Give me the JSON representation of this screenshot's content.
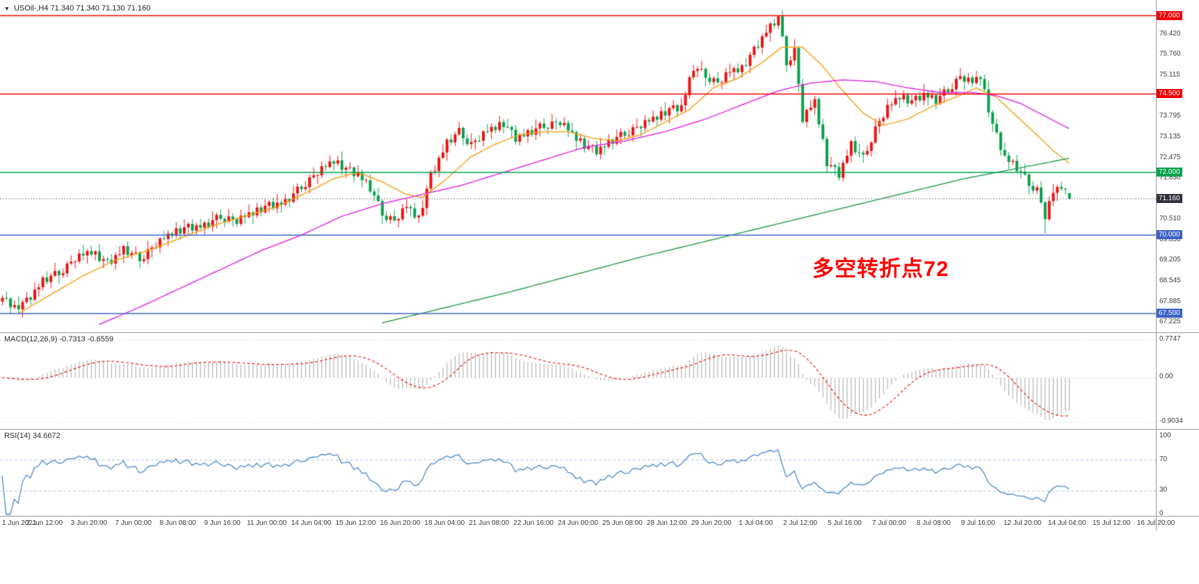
{
  "title": {
    "symbol_tf": "USOil-,H4",
    "ohlc": "71.340 71.340 71.130 71.160"
  },
  "annotation": {
    "text": "多空转折点72",
    "color": "#fe0000"
  },
  "current_price": {
    "price": 71.16,
    "label": "71.160",
    "color": "#30303c"
  },
  "hlines": [
    {
      "price": 77.0,
      "label": "77.000",
      "color": "#f00000"
    },
    {
      "price": 74.5,
      "label": "74.500",
      "color": "#f00000"
    },
    {
      "price": 72.0,
      "label": "72.000",
      "color": "#00a14b"
    },
    {
      "price": 70.0,
      "label": "70.000",
      "color": "#3a62c8"
    },
    {
      "price": 67.5,
      "label": "67.500",
      "color": "#3a62c8"
    }
  ],
  "price_axis": {
    "plain_labels": [
      "76.420",
      "75.760",
      "75.115",
      "73.795",
      "73.135",
      "72.475",
      "71.830",
      "70.510",
      "69.850",
      "69.205",
      "68.545",
      "67.885",
      "67.225"
    ]
  },
  "macd": {
    "title": "MACD(12,26,9)",
    "values": "-0.7313 -0.6559",
    "axis": [
      "0.7747",
      "0.00",
      "-0.9034"
    ],
    "axis_values": [
      0.7747,
      0,
      -0.9034
    ],
    "hist_color": "#a6a6a6",
    "signal_color": "#f00000"
  },
  "rsi": {
    "title": "RSI(14)",
    "value": "34.6672",
    "axis": [
      "100",
      "70",
      "30",
      "0"
    ],
    "axis_values": [
      100,
      70,
      30,
      0
    ],
    "levels": [
      70,
      30
    ],
    "line_color": "#4a86c8",
    "level_color": "#a9c3e2"
  },
  "time_axis": {
    "labels": [
      "1 Jun 2021",
      "2 Jun 12:00",
      "3 Jun 20:00",
      "7 Jun 00:00",
      "8 Jun 08:00",
      "9 Jun 16:00",
      "11 Jun 00:00",
      "14 Jun 04:00",
      "15 Jun 12:00",
      "16 Jun 20:00",
      "18 Jun 04:00",
      "21 Jun 08:00",
      "22 Jun 16:00",
      "24 Jun 00:00",
      "25 Jun 08:00",
      "28 Jun 12:00",
      "29 Jun 20:00",
      "1 Jul 04:00",
      "2 Jul 12:00",
      "5 Jul 16:00",
      "7 Jul 00:00",
      "8 Jul 08:00",
      "9 Jul 16:00",
      "12 Jul 20:00",
      "14 Jul 04:00",
      "15 Jul 12:00",
      "16 Jul 20:00"
    ]
  },
  "chart_data": [
    {
      "type": "candlestick",
      "title": "USOil- H4",
      "n": 265,
      "ylim": [
        66.9,
        77.5
      ],
      "up_color": "#ee1212",
      "down_color": "#0aa04e",
      "close_anchors": [
        [
          0,
          68.0
        ],
        [
          3,
          67.65
        ],
        [
          6,
          67.9
        ],
        [
          10,
          68.55
        ],
        [
          14,
          68.8
        ],
        [
          18,
          69.25
        ],
        [
          22,
          69.45
        ],
        [
          26,
          69.1
        ],
        [
          30,
          69.55
        ],
        [
          34,
          69.25
        ],
        [
          38,
          69.7
        ],
        [
          42,
          70.05
        ],
        [
          46,
          70.25
        ],
        [
          50,
          70.3
        ],
        [
          54,
          70.6
        ],
        [
          58,
          70.45
        ],
        [
          62,
          70.7
        ],
        [
          66,
          70.95
        ],
        [
          70,
          71.05
        ],
        [
          74,
          71.55
        ],
        [
          78,
          72.0
        ],
        [
          82,
          72.35
        ],
        [
          85,
          72.1
        ],
        [
          88,
          71.95
        ],
        [
          91,
          71.5
        ],
        [
          94,
          70.7
        ],
        [
          97,
          70.45
        ],
        [
          100,
          70.9
        ],
        [
          103,
          70.5
        ],
        [
          106,
          71.9
        ],
        [
          110,
          72.95
        ],
        [
          113,
          73.3
        ],
        [
          116,
          72.9
        ],
        [
          120,
          73.3
        ],
        [
          124,
          73.55
        ],
        [
          127,
          73.1
        ],
        [
          130,
          73.25
        ],
        [
          134,
          73.5
        ],
        [
          138,
          73.6
        ],
        [
          141,
          73.2
        ],
        [
          144,
          72.85
        ],
        [
          147,
          72.7
        ],
        [
          150,
          72.95
        ],
        [
          154,
          73.25
        ],
        [
          158,
          73.5
        ],
        [
          162,
          73.75
        ],
        [
          165,
          74.0
        ],
        [
          168,
          74.1
        ],
        [
          171,
          75.35
        ],
        [
          174,
          75.1
        ],
        [
          177,
          74.85
        ],
        [
          180,
          75.2
        ],
        [
          183,
          75.3
        ],
        [
          186,
          75.9
        ],
        [
          189,
          76.5
        ],
        [
          192,
          76.95
        ],
        [
          194,
          75.5
        ],
        [
          196,
          75.9
        ],
        [
          198,
          73.7
        ],
        [
          201,
          74.25
        ],
        [
          204,
          72.3
        ],
        [
          207,
          71.95
        ],
        [
          210,
          72.9
        ],
        [
          213,
          72.45
        ],
        [
          216,
          73.4
        ],
        [
          219,
          74.05
        ],
        [
          222,
          74.4
        ],
        [
          225,
          74.25
        ],
        [
          228,
          74.5
        ],
        [
          231,
          74.3
        ],
        [
          234,
          74.65
        ],
        [
          237,
          75.05
        ],
        [
          240,
          74.85
        ],
        [
          242,
          75.05
        ],
        [
          245,
          73.5
        ],
        [
          248,
          72.5
        ],
        [
          251,
          72.15
        ],
        [
          254,
          71.65
        ],
        [
          256,
          71.45
        ],
        [
          258,
          70.6
        ],
        [
          260,
          71.35
        ],
        [
          262,
          71.55
        ],
        [
          264,
          71.16
        ]
      ],
      "wiggle": [
        0,
        0.09,
        -0.07,
        0.12,
        -0.1,
        0.05,
        0.11,
        -0.12,
        0.04,
        -0.05,
        0.1,
        -0.11,
        0.03,
        0.12,
        -0.08,
        -0.13,
        0.07,
        0.02,
        -0.09,
        0.11
      ],
      "wick_up": [
        0.08,
        0.2,
        0.05,
        0.14,
        0.28,
        0.07,
        0.17,
        0.04,
        0.24,
        0.11,
        0.06,
        0.19,
        0.09,
        0.26,
        0.05,
        0.15
      ],
      "wick_down": [
        0.12,
        0.05,
        0.22,
        0.07,
        0.16,
        0.26,
        0.06,
        0.18,
        0.05,
        0.23,
        0.1,
        0.07,
        0.2,
        0.05,
        0.27,
        0.09
      ],
      "overrides": [
        {
          "i": 192,
          "h": 77.0
        },
        {
          "i": 258,
          "l": 70.05
        },
        {
          "i": 264,
          "o": 71.34,
          "h": 71.34,
          "l": 71.13,
          "c": 71.16
        }
      ],
      "ma_lines": [
        {
          "name": "ma-fast",
          "color": "#f6a21d",
          "anchors": [
            [
              4,
              67.5
            ],
            [
              12,
              68.1
            ],
            [
              20,
              68.7
            ],
            [
              28,
              69.2
            ],
            [
              36,
              69.5
            ],
            [
              44,
              69.9
            ],
            [
              52,
              70.3
            ],
            [
              60,
              70.6
            ],
            [
              68,
              70.9
            ],
            [
              76,
              71.4
            ],
            [
              82,
              71.8
            ],
            [
              88,
              72.0
            ],
            [
              94,
              71.7
            ],
            [
              100,
              71.3
            ],
            [
              104,
              71.2
            ],
            [
              110,
              71.8
            ],
            [
              116,
              72.5
            ],
            [
              122,
              72.9
            ],
            [
              128,
              73.2
            ],
            [
              134,
              73.3
            ],
            [
              140,
              73.3
            ],
            [
              146,
              73.1
            ],
            [
              152,
              73.0
            ],
            [
              158,
              73.2
            ],
            [
              164,
              73.6
            ],
            [
              170,
              74.0
            ],
            [
              176,
              74.7
            ],
            [
              182,
              75.0
            ],
            [
              188,
              75.5
            ],
            [
              193,
              76.0
            ],
            [
              198,
              76.0
            ],
            [
              203,
              75.4
            ],
            [
              208,
              74.6
            ],
            [
              213,
              73.9
            ],
            [
              218,
              73.5
            ],
            [
              224,
              73.7
            ],
            [
              230,
              74.1
            ],
            [
              236,
              74.4
            ],
            [
              241,
              74.7
            ],
            [
              246,
              74.4
            ],
            [
              251,
              73.8
            ],
            [
              256,
              73.2
            ],
            [
              260,
              72.7
            ],
            [
              264,
              72.3
            ]
          ]
        },
        {
          "name": "ma-mid",
          "color": "#e22de2",
          "anchors": [
            [
              24,
              67.15
            ],
            [
              34,
              67.7
            ],
            [
              44,
              68.3
            ],
            [
              54,
              68.9
            ],
            [
              64,
              69.5
            ],
            [
              74,
              70.0
            ],
            [
              84,
              70.6
            ],
            [
              94,
              71.0
            ],
            [
              104,
              71.3
            ],
            [
              114,
              71.6
            ],
            [
              124,
              72.0
            ],
            [
              134,
              72.4
            ],
            [
              144,
              72.8
            ],
            [
              154,
              73.0
            ],
            [
              164,
              73.3
            ],
            [
              174,
              73.7
            ],
            [
              184,
              74.2
            ],
            [
              192,
              74.6
            ],
            [
              200,
              74.85
            ],
            [
              208,
              74.95
            ],
            [
              216,
              74.9
            ],
            [
              224,
              74.7
            ],
            [
              232,
              74.55
            ],
            [
              240,
              74.55
            ],
            [
              246,
              74.45
            ],
            [
              252,
              74.2
            ],
            [
              258,
              73.8
            ],
            [
              264,
              73.4
            ]
          ]
        },
        {
          "name": "ma-slow",
          "color": "#2e9e53",
          "anchors": [
            [
              94,
              67.2
            ],
            [
              110,
              67.7
            ],
            [
              126,
              68.2
            ],
            [
              142,
              68.75
            ],
            [
              158,
              69.3
            ],
            [
              174,
              69.8
            ],
            [
              190,
              70.3
            ],
            [
              206,
              70.8
            ],
            [
              222,
              71.3
            ],
            [
              238,
              71.8
            ],
            [
              250,
              72.1
            ],
            [
              264,
              72.45
            ]
          ]
        }
      ]
    },
    {
      "type": "bar",
      "title": "MACD(12,26,9)",
      "derived_from": "price closes, EMA12 - EMA26, signal SMA9",
      "last_macd": -0.7313,
      "last_signal": -0.6559,
      "ylim": [
        -0.9034,
        0.7747
      ]
    },
    {
      "type": "line",
      "title": "RSI(14)",
      "derived_from": "price closes, Wilder RSI period 14",
      "last_value": 34.6672,
      "ylim": [
        0,
        100
      ],
      "levels": [
        70,
        30
      ]
    }
  ]
}
